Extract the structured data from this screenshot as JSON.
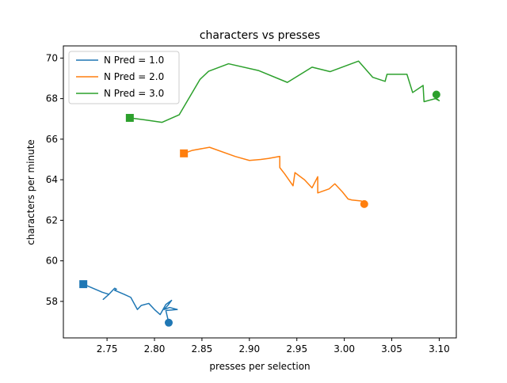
{
  "chart_data": {
    "type": "line",
    "title": "characters vs presses",
    "xlabel": "presses per selection",
    "ylabel": "characters per minute",
    "xlim": [
      2.704,
      3.118
    ],
    "ylim": [
      56.2,
      70.6
    ],
    "xticks": [
      2.75,
      2.8,
      2.85,
      2.9,
      2.95,
      3.0,
      3.05,
      3.1
    ],
    "xtick_labels": [
      "2.75",
      "2.80",
      "2.85",
      "2.90",
      "2.95",
      "3.00",
      "3.05",
      "3.10"
    ],
    "yticks": [
      58,
      60,
      62,
      64,
      66,
      68,
      70
    ],
    "ytick_labels": [
      "58",
      "60",
      "62",
      "64",
      "66",
      "68",
      "70"
    ],
    "grid": false,
    "legend": "top-left",
    "series": [
      {
        "name": "N Pred = 1.0",
        "color": "#1f77b4",
        "start_marker": "square",
        "end_marker": "circle",
        "points": [
          [
            2.725,
            58.85
          ],
          [
            2.745,
            58.45
          ],
          [
            2.752,
            58.35
          ],
          [
            2.746,
            58.1
          ],
          [
            2.752,
            58.35
          ],
          [
            2.758,
            58.65
          ],
          [
            2.76,
            58.6
          ],
          [
            2.758,
            58.55
          ],
          [
            2.768,
            58.35
          ],
          [
            2.775,
            58.2
          ],
          [
            2.782,
            57.6
          ],
          [
            2.786,
            57.8
          ],
          [
            2.794,
            57.9
          ],
          [
            2.8,
            57.6
          ],
          [
            2.806,
            57.35
          ],
          [
            2.812,
            57.85
          ],
          [
            2.818,
            58.05
          ],
          [
            2.814,
            57.8
          ],
          [
            2.81,
            57.6
          ],
          [
            2.816,
            57.7
          ],
          [
            2.824,
            57.6
          ],
          [
            2.812,
            57.55
          ],
          [
            2.815,
            56.95
          ]
        ]
      },
      {
        "name": "N Pred = 2.0",
        "color": "#ff7f0e",
        "start_marker": "square",
        "end_marker": "circle",
        "points": [
          [
            2.831,
            65.3
          ],
          [
            2.84,
            65.45
          ],
          [
            2.858,
            65.6
          ],
          [
            2.885,
            65.15
          ],
          [
            2.9,
            64.95
          ],
          [
            2.912,
            65.0
          ],
          [
            2.92,
            65.05
          ],
          [
            2.932,
            65.15
          ],
          [
            2.932,
            64.6
          ],
          [
            2.937,
            64.3
          ],
          [
            2.946,
            63.7
          ],
          [
            2.948,
            64.35
          ],
          [
            2.958,
            64.0
          ],
          [
            2.966,
            63.6
          ],
          [
            2.972,
            64.15
          ],
          [
            2.972,
            63.35
          ],
          [
            2.984,
            63.55
          ],
          [
            2.99,
            63.8
          ],
          [
            2.998,
            63.4
          ],
          [
            3.004,
            63.05
          ],
          [
            3.008,
            63.0
          ],
          [
            3.018,
            62.95
          ],
          [
            3.021,
            62.8
          ]
        ]
      },
      {
        "name": "N Pred = 3.0",
        "color": "#2ca02c",
        "start_marker": "square",
        "end_marker": "circle",
        "points": [
          [
            2.774,
            67.05
          ],
          [
            2.79,
            66.95
          ],
          [
            2.808,
            66.83
          ],
          [
            2.826,
            67.2
          ],
          [
            2.848,
            68.95
          ],
          [
            2.857,
            69.35
          ],
          [
            2.878,
            69.72
          ],
          [
            2.91,
            69.38
          ],
          [
            2.94,
            68.8
          ],
          [
            2.966,
            69.55
          ],
          [
            2.985,
            69.33
          ],
          [
            3.015,
            69.85
          ],
          [
            3.03,
            69.05
          ],
          [
            3.043,
            68.85
          ],
          [
            3.045,
            69.2
          ],
          [
            3.066,
            69.2
          ],
          [
            3.072,
            68.3
          ],
          [
            3.083,
            68.65
          ],
          [
            3.084,
            67.85
          ],
          [
            3.096,
            68.0
          ],
          [
            3.1,
            67.9
          ],
          [
            3.096,
            68.05
          ],
          [
            3.097,
            68.2
          ]
        ]
      }
    ]
  }
}
